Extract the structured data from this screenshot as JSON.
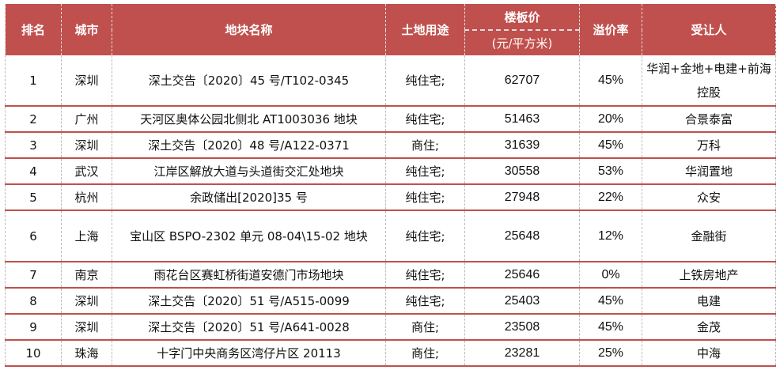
{
  "headers": {
    "rank": "排名",
    "city": "城市",
    "plot": "地块名称",
    "use": "土地用途",
    "price": "楼板价",
    "price_unit": "(元/平方米)",
    "premium": "溢价率",
    "buyer": "受让人"
  },
  "rows": [
    {
      "rank": "1",
      "city": "深圳",
      "plot": "深土交告〔2020〕45 号/T102-0345",
      "use": "纯住宅;",
      "price": "62707",
      "premium": "45%",
      "buyer": "华润+金地+电建+前海控股"
    },
    {
      "rank": "2",
      "city": "广州",
      "plot": "天河区奥体公园北侧北 AT1003036 地块",
      "use": "纯住宅;",
      "price": "51463",
      "premium": "20%",
      "buyer": "合景泰富"
    },
    {
      "rank": "3",
      "city": "深圳",
      "plot": "深土交告〔2020〕48 号/A122-0371",
      "use": "商住;",
      "price": "31639",
      "premium": "45%",
      "buyer": "万科"
    },
    {
      "rank": "4",
      "city": "武汉",
      "plot": "江岸区解放大道与头道街交汇处地块",
      "use": "纯住宅;",
      "price": "30558",
      "premium": "53%",
      "buyer": "华润置地"
    },
    {
      "rank": "5",
      "city": "杭州",
      "plot": "余政储出[2020]35 号",
      "use": "纯住宅;",
      "price": "27948",
      "premium": "22%",
      "buyer": "众安"
    },
    {
      "rank": "6",
      "city": "上海",
      "plot": "宝山区 BSPO-2302 单元 08-04\\15-02 地块",
      "use": "纯住宅;",
      "price": "25648",
      "premium": "12%",
      "buyer": "金融街"
    },
    {
      "rank": "7",
      "city": "南京",
      "plot": "雨花台区赛虹桥街道安德门市场地块",
      "use": "纯住宅;",
      "price": "25646",
      "premium": "0%",
      "buyer": "上铁房地产"
    },
    {
      "rank": "8",
      "city": "深圳",
      "plot": "深土交告〔2020〕51 号/A515-0099",
      "use": "纯住宅;",
      "price": "25403",
      "premium": "45%",
      "buyer": "电建"
    },
    {
      "rank": "9",
      "city": "深圳",
      "plot": "深土交告〔2020〕51 号/A641-0028",
      "use": "商住;",
      "price": "23508",
      "premium": "45%",
      "buyer": "金茂"
    },
    {
      "rank": "10",
      "city": "珠海",
      "plot": "十字门中央商务区湾仔片区 20113",
      "use": "商住;",
      "price": "23281",
      "premium": "25%",
      "buyer": "中海"
    }
  ],
  "colors": {
    "header_bg": "#c0504d",
    "header_text": "#ffffff",
    "row_border": "#c0504d"
  }
}
